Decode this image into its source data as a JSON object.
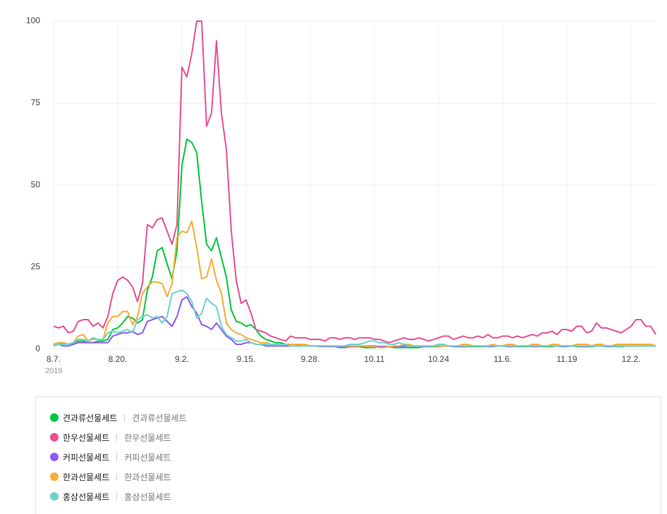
{
  "chart_data": {
    "type": "line",
    "categories": [
      "8.7.",
      null,
      null,
      null,
      null,
      null,
      null,
      null,
      null,
      null,
      null,
      null,
      null,
      "8.20.",
      null,
      null,
      null,
      null,
      null,
      null,
      null,
      null,
      null,
      null,
      null,
      null,
      "9.2.",
      null,
      null,
      null,
      null,
      null,
      null,
      null,
      null,
      null,
      null,
      null,
      null,
      "9.15.",
      null,
      null,
      null,
      null,
      null,
      null,
      null,
      null,
      null,
      null,
      null,
      null,
      "9.28.",
      null,
      null,
      null,
      null,
      null,
      null,
      null,
      null,
      null,
      null,
      null,
      null,
      "10.11",
      null,
      null,
      null,
      null,
      null,
      null,
      null,
      null,
      null,
      null,
      null,
      null,
      "10.24",
      null,
      null,
      null,
      null,
      null,
      null,
      null,
      null,
      null,
      null,
      null,
      null,
      "11.6.",
      null,
      null,
      null,
      null,
      null,
      null,
      null,
      null,
      null,
      null,
      null,
      null,
      "11.19",
      null,
      null,
      null,
      null,
      null,
      null,
      null,
      null,
      null,
      null,
      null,
      null,
      "12.2.",
      null,
      null,
      null,
      null,
      null
    ],
    "year_label": "2019",
    "ylim": [
      0,
      100
    ],
    "yticks": [
      0,
      25,
      50,
      75,
      100
    ],
    "grid": true,
    "series": [
      {
        "name": "견과류선물세트",
        "color": "#00c73c",
        "values": [
          1.5,
          2,
          1.5,
          1.5,
          2,
          2.5,
          2.5,
          2,
          2,
          2.5,
          2.5,
          3,
          6,
          6.5,
          8,
          10,
          9.5,
          8,
          9,
          18,
          22,
          30,
          31,
          26,
          21.5,
          30,
          56,
          64,
          63,
          60,
          45,
          32,
          30,
          34,
          28,
          22,
          12,
          8.5,
          8,
          7,
          7.5,
          6,
          4,
          3,
          2.5,
          2,
          2,
          1.5,
          1.5,
          1.5,
          1,
          1,
          1,
          1,
          1,
          1,
          1,
          1,
          0.8,
          0.8,
          0.8,
          0.8,
          0.8,
          0.5,
          0.5,
          0.5,
          0.8,
          0.8,
          0.8,
          0.5,
          0.5,
          0.5,
          0.5,
          0.5,
          0.5,
          0.8,
          0.8,
          0.8,
          0.8,
          1,
          1,
          1,
          0.8,
          0.8,
          0.8,
          0.8,
          0.8,
          0.8,
          1,
          1,
          1,
          1,
          1,
          1,
          0.8,
          0.8,
          0.8,
          1,
          1,
          0.8,
          0.8,
          0.8,
          1,
          1,
          1,
          1,
          0.8,
          0.8,
          0.8,
          0.8,
          1,
          1,
          1,
          1,
          0.8,
          0.8,
          1,
          1,
          1,
          1,
          1,
          1,
          1
        ]
      },
      {
        "name": "한우선물세트",
        "color": "#ea4f92",
        "values": [
          7,
          6.5,
          7,
          5,
          5.5,
          8.5,
          9,
          9,
          7,
          8,
          6.5,
          10,
          17,
          21,
          22,
          21,
          19,
          14.5,
          20,
          38,
          37,
          39.5,
          40,
          36,
          32,
          38,
          86,
          83,
          90,
          100,
          100,
          68,
          72,
          94,
          72,
          61,
          36,
          21,
          14,
          15,
          11,
          6,
          5.5,
          5,
          4,
          3.5,
          3,
          2.5,
          4,
          3.5,
          3.5,
          3.5,
          3,
          3,
          3,
          2.5,
          3.5,
          3.5,
          3,
          3.5,
          3.5,
          3,
          3.5,
          3.5,
          3.5,
          3,
          3,
          2.5,
          2,
          2.5,
          3,
          3.5,
          3,
          3,
          3.5,
          3,
          2.5,
          3,
          3.5,
          4,
          4,
          3,
          3.5,
          4,
          3.5,
          3.5,
          4,
          3.5,
          4.5,
          3.5,
          3.5,
          4,
          4,
          3.5,
          4,
          3.5,
          4,
          4.5,
          4,
          5,
          5,
          5.5,
          4.5,
          6,
          6,
          5.5,
          7,
          7,
          5,
          5.5,
          8,
          6.5,
          6.5,
          6,
          5.5,
          5,
          6,
          7,
          9,
          9,
          7,
          7,
          4.5
        ]
      },
      {
        "name": "커피선물세트",
        "color": "#8b5cf6",
        "values": [
          1,
          1.5,
          1,
          1,
          1.5,
          2,
          2,
          2,
          2,
          2,
          2,
          2,
          4,
          4.5,
          5,
          5,
          5.5,
          4.5,
          5,
          8.5,
          9,
          9.5,
          10,
          8.5,
          7,
          10,
          15,
          16,
          13,
          11,
          7.5,
          7,
          6,
          8,
          6,
          4,
          3,
          1.5,
          1.5,
          2,
          2,
          1.5,
          1.5,
          1,
          1,
          1,
          1,
          1,
          1,
          1,
          1,
          1,
          1,
          1,
          0.8,
          0.8,
          0.8,
          0.8,
          0.5,
          0.5,
          0.8,
          0.8,
          1,
          1,
          1,
          1,
          0.8,
          0.8,
          0.8,
          0.8,
          0.8,
          1,
          1,
          1,
          1,
          0.8,
          0.8,
          1,
          1,
          1,
          1,
          0.8,
          0.8,
          0.8,
          1,
          1,
          1,
          1,
          0.8,
          0.8,
          1,
          1,
          0.8,
          0.8,
          1,
          1,
          1,
          0.8,
          0.8,
          1,
          1,
          1,
          1,
          0.8,
          0.8,
          1,
          1,
          0.8,
          0.8,
          1,
          1,
          1,
          0.8,
          0.8,
          1,
          1,
          1,
          1,
          1,
          1,
          1,
          1,
          1
        ]
      },
      {
        "name": "한과선물세트",
        "color": "#f7ad33",
        "values": [
          1.5,
          2,
          2,
          1.5,
          2,
          4,
          4.5,
          2.5,
          3,
          3,
          3,
          8,
          10,
          10,
          11.5,
          11.5,
          7.5,
          10,
          17,
          19,
          20.5,
          20.5,
          20,
          16,
          20,
          34,
          36,
          35.5,
          39,
          31,
          21.5,
          22,
          27.5,
          21,
          17,
          8,
          6,
          5,
          4.5,
          3.5,
          3,
          2.5,
          2,
          2,
          1.5,
          1.5,
          1.5,
          1.5,
          1.5,
          1.5,
          1.5,
          1.5,
          1,
          1,
          1,
          1,
          1,
          1,
          1,
          1,
          1,
          1,
          1,
          1,
          0.8,
          0.8,
          0.5,
          0.5,
          0.8,
          1,
          1,
          1.5,
          1.5,
          1,
          1,
          1,
          1,
          1,
          1,
          1,
          1,
          1,
          1,
          1.5,
          1.5,
          1,
          1,
          1,
          1,
          1.5,
          1,
          1,
          1.5,
          1.5,
          1,
          1,
          1,
          1.5,
          1.5,
          1,
          1,
          1.5,
          1.5,
          1,
          1,
          1,
          1.5,
          1.5,
          1.5,
          1,
          1.5,
          1.5,
          1,
          1,
          1.5,
          1.5,
          1.5,
          1.5,
          1.5,
          1.5,
          1.5,
          1.5,
          1
        ]
      },
      {
        "name": "홍삼선물세트",
        "color": "#6dd2c6",
        "values": [
          1,
          1.5,
          1.5,
          1.5,
          2,
          3,
          3,
          2.5,
          3.5,
          3,
          3,
          5,
          5.5,
          5,
          5.5,
          6,
          5,
          9,
          10,
          10.5,
          9.5,
          10,
          8,
          10,
          17,
          17.5,
          18,
          17,
          14.5,
          9.5,
          11,
          15.5,
          14,
          13,
          7,
          4.5,
          3.5,
          2.5,
          2.5,
          3,
          2,
          1.5,
          1.5,
          1.5,
          1.5,
          1.5,
          1.5,
          1.5,
          1,
          1,
          1,
          1,
          1,
          1,
          1,
          1,
          1,
          1,
          1,
          1,
          1.5,
          1.5,
          1.5,
          2,
          2.5,
          2.5,
          2,
          2,
          1.5,
          1.5,
          2,
          1.5,
          1,
          1,
          1,
          1,
          1,
          1,
          1.5,
          1.5,
          1,
          1,
          1,
          1,
          1,
          1,
          1,
          1,
          1,
          1,
          1,
          1,
          1,
          1,
          1,
          1,
          1,
          1,
          1,
          1,
          1,
          1,
          1,
          1,
          1,
          1,
          1,
          1,
          1,
          1,
          1,
          1,
          1,
          1,
          1,
          1,
          1,
          1,
          1,
          1,
          1,
          1,
          1
        ]
      }
    ]
  }
}
